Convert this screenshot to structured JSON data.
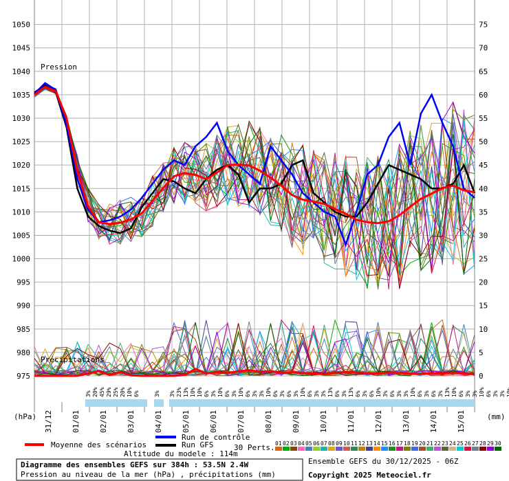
{
  "chart_data": {
    "type": "line",
    "left_axis_unit": "(hPa)",
    "right_axis_unit": "(mm)",
    "y_left_ticks": [
      1050,
      1045,
      1040,
      1035,
      1030,
      1025,
      1020,
      1015,
      1010,
      1005,
      1000,
      995,
      990,
      985,
      980,
      975
    ],
    "y_right_ticks": [
      75,
      70,
      65,
      60,
      55,
      50,
      45,
      40,
      35,
      30,
      25,
      20,
      15,
      10,
      5,
      0
    ],
    "ylim_pressure": [
      975,
      1052
    ],
    "ylim_precip": [
      0,
      77
    ],
    "x_date_labels": [
      "31/12",
      "01/01",
      "02/01",
      "03/01",
      "04/01",
      "05/01",
      "06/01",
      "07/01",
      "08/01",
      "09/01",
      "10/01",
      "11/01",
      "12/01",
      "13/01",
      "14/01",
      "15/01"
    ],
    "x_hours": [
      0,
      384
    ],
    "pression_label": "Pression",
    "precip_label": "Précipitations",
    "mean_series": {
      "name": "Moyenne des scénarios",
      "color": "#ff0000",
      "values": [
        1035.0,
        1036.7,
        1035.7,
        1029.9,
        1018.6,
        1011.2,
        1007.8,
        1007.4,
        1007.7,
        1008.4,
        1009.7,
        1012.4,
        1015.1,
        1017.6,
        1018.3,
        1017.9,
        1017.0,
        1018.4,
        1020.0,
        1020.1,
        1019.9,
        1018.8,
        1017.3,
        1015.6,
        1013.6,
        1012.6,
        1012.2,
        1011.7,
        1010.6,
        1009.6,
        1008.3,
        1007.8,
        1007.6,
        1008.0,
        1009.3,
        1011.1,
        1012.8,
        1013.9,
        1015.1,
        1015.6,
        1014.6,
        1014.2
      ]
    },
    "control_series": {
      "name": "Run de contrôle",
      "color": "#0000ff",
      "values": [
        1035.2,
        1037.5,
        1036.0,
        1028.5,
        1017.0,
        1010.5,
        1007.8,
        1008.2,
        1009.0,
        1010.5,
        1013.0,
        1016.0,
        1019.0,
        1021.0,
        1020.0,
        1024.0,
        1026.0,
        1029.0,
        1023.0,
        1020.0,
        1018.0,
        1016.0,
        1024.0,
        1021.0,
        1018.0,
        1014.0,
        1012.0,
        1010.0,
        1009.0,
        1003.0,
        1010.0,
        1018.0,
        1020.0,
        1026.0,
        1029.0,
        1020.0,
        1031.0,
        1035.0,
        1029.0,
        1024.0,
        1015.0,
        1013.0
      ]
    },
    "gfs_series": {
      "name": "Run GFS",
      "color": "#000000",
      "values": [
        1035.5,
        1037.0,
        1035.5,
        1028.0,
        1015.0,
        1009.0,
        1007.0,
        1006.0,
        1005.5,
        1006.5,
        1011.0,
        1014.0,
        1017.0,
        1016.5,
        1015.0,
        1014.0,
        1017.0,
        1019.0,
        1020.0,
        1018.0,
        1012.0,
        1015.0,
        1015.0,
        1016.0,
        1020.0,
        1021.0,
        1014.0,
        1012.0,
        1010.0,
        1009.0,
        1009.0,
        1012.0,
        1016.0,
        1020.0,
        1019.0,
        1018.0,
        1017.0,
        1015.0,
        1015.0,
        1016.0,
        1020.0,
        1014.0
      ]
    },
    "mean_precip": [
      0,
      0,
      0,
      0,
      0,
      0.5,
      1.0,
      0.2,
      0.8,
      0.1,
      0,
      0,
      0,
      0,
      0.2,
      1.5,
      0.5,
      0.8,
      0.6,
      1.0,
      1.2,
      0.9,
      1.0,
      0.7,
      0.8,
      0.6,
      0.5,
      0.4,
      0.6,
      0.8,
      0.7,
      0.6,
      0.5,
      0.7,
      0.6,
      0.5,
      0.4,
      0.6,
      0.5,
      0.7,
      0.5,
      0.4
    ],
    "pert_range_pressure": [
      1000,
      1040
    ],
    "pert_range_precip": [
      0,
      12
    ],
    "gefs_member_names": [
      "01",
      "02",
      "03",
      "04",
      "05",
      "06",
      "07",
      "08",
      "09",
      "10",
      "11",
      "12",
      "13",
      "14",
      "15",
      "16",
      "17",
      "18",
      "19",
      "20",
      "21",
      "22",
      "23",
      "24",
      "25",
      "26",
      "27",
      "28",
      "29",
      "30"
    ],
    "gefs_member_colors": [
      "#d2691e",
      "#00b000",
      "#8b4513",
      "#ff69b4",
      "#4682b4",
      "#9acd32",
      "#20b2aa",
      "#daa520",
      "#6a5acd",
      "#cd5c5c",
      "#2e8b57",
      "#b8860b",
      "#483d8b",
      "#ff8c00",
      "#1e90ff",
      "#228b22",
      "#c71585",
      "#808000",
      "#4169e1",
      "#a0522d",
      "#3cb371",
      "#ba55d3",
      "#556b2f",
      "#d2b48c",
      "#00ced1",
      "#dc143c",
      "#708090",
      "#8b0000",
      "#9400d3",
      "#006400"
    ],
    "prob_percents": [
      "3%",
      "20%",
      "45%",
      "29%",
      "25%",
      "20%",
      "10%",
      "6%",
      "3%",
      "3%",
      "23%",
      "13%",
      "10%",
      "10%",
      "6%",
      "3%",
      "10%",
      "6%",
      "3%",
      "10%",
      "6%",
      "3%",
      "3%",
      "10%",
      "6%",
      "3%",
      "6%",
      "3%",
      "10%",
      "6%",
      "3%",
      "3%",
      "13%",
      "6%",
      "3%",
      "13%",
      "6%",
      "3%",
      "6%",
      "10%",
      "3%",
      "6%",
      "3%",
      "3%",
      "10%",
      "6%",
      "3%",
      "6%",
      "3%",
      "13%",
      "10%",
      "6%",
      "3%",
      "3%",
      "10%",
      "6%",
      "3%",
      "3%",
      "10%",
      "6%",
      "3%",
      "3%",
      "3%"
    ],
    "grid": true,
    "legend_position": "bottom"
  },
  "legend": {
    "mean_label": "Moyenne des scénarios",
    "control_label": "Run de contrôle",
    "gfs_label": "Run GFS",
    "altitude_label": "Altitude du modele : 114m",
    "pert_count_label": "30 Perts.",
    "member_numbers_row": "01020304050607080910111213141516171819202122232425262728293 0"
  },
  "footer": {
    "title": "Diagramme des ensembles GEFS sur 384h : 53.5N 2.4W",
    "subtitle": "Pression au niveau de la mer (hPa) , précipitations (mm)",
    "run_info": "Ensemble GEFS du 30/12/2025 - 06Z",
    "copyright": "Copyright 2025 Meteociel.fr"
  },
  "accent_colors": {
    "grid": "#a0a0a0",
    "prob_band": "#a8d8f0",
    "mean": "#ff0000",
    "control": "#0000ff",
    "gfs": "#000000"
  }
}
